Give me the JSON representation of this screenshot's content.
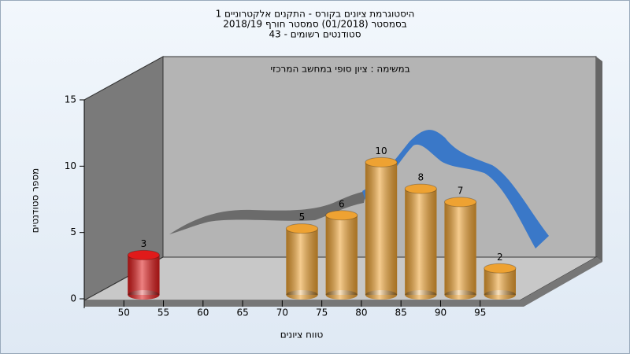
{
  "chart_data": {
    "type": "histogram",
    "title_lines": [
      "היסטוגרמת ציונים בקורס - התקנים אלקטרוניים 1",
      "בסמסטר  (01/2018)  סמסטר חורף 2018/19",
      "סטודנטים רשומים - 43"
    ],
    "annotation": "במשימה : ציון סופי במחשב המרכזי",
    "x_label": "טווח ציונים",
    "y_label": "מספר סטודנטים",
    "bins": [
      50,
      55,
      60,
      65,
      70,
      75,
      80,
      85,
      90,
      95,
      100
    ],
    "values": [
      3,
      0,
      0,
      0,
      5,
      6,
      10,
      8,
      7,
      2
    ],
    "colors": [
      "#e01a1a",
      "#eea232",
      "#eea232",
      "#eea232",
      "#eea232",
      "#eea232",
      "#eea232",
      "#eea232",
      "#eea232",
      "#eea232"
    ],
    "xlim": [
      45,
      100
    ],
    "xticks": [
      50,
      55,
      60,
      65,
      70,
      75,
      80,
      85,
      90,
      95
    ],
    "ylim": [
      0,
      15
    ],
    "yticks": [
      0,
      5,
      10,
      15
    ]
  }
}
